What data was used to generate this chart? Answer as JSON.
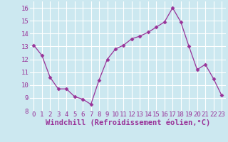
{
  "x": [
    0,
    1,
    2,
    3,
    4,
    5,
    6,
    7,
    8,
    9,
    10,
    11,
    12,
    13,
    14,
    15,
    16,
    17,
    18,
    19,
    20,
    21,
    22,
    23
  ],
  "y": [
    13.1,
    12.3,
    10.6,
    9.7,
    9.7,
    9.1,
    8.9,
    8.5,
    10.4,
    12.0,
    12.8,
    13.1,
    13.6,
    13.8,
    14.1,
    14.5,
    14.9,
    16.0,
    14.9,
    13.0,
    11.2,
    11.6,
    10.5,
    9.2
  ],
  "line_color": "#993399",
  "marker": "D",
  "marker_size": 2.5,
  "xlabel": "Windchill (Refroidissement éolien,°C)",
  "xlim": [
    -0.5,
    23.5
  ],
  "ylim": [
    8,
    16.5
  ],
  "yticks": [
    8,
    9,
    10,
    11,
    12,
    13,
    14,
    15,
    16
  ],
  "xtick_labels": [
    "0",
    "1",
    "2",
    "3",
    "4",
    "5",
    "6",
    "7",
    "8",
    "9",
    "10",
    "11",
    "12",
    "13",
    "14",
    "15",
    "16",
    "17",
    "18",
    "19",
    "20",
    "21",
    "22",
    "23"
  ],
  "bg_color": "#cce8f0",
  "grid_color": "#ffffff",
  "line_purple": "#993399",
  "tick_label_fontsize": 6.5,
  "xlabel_fontsize": 7.5
}
